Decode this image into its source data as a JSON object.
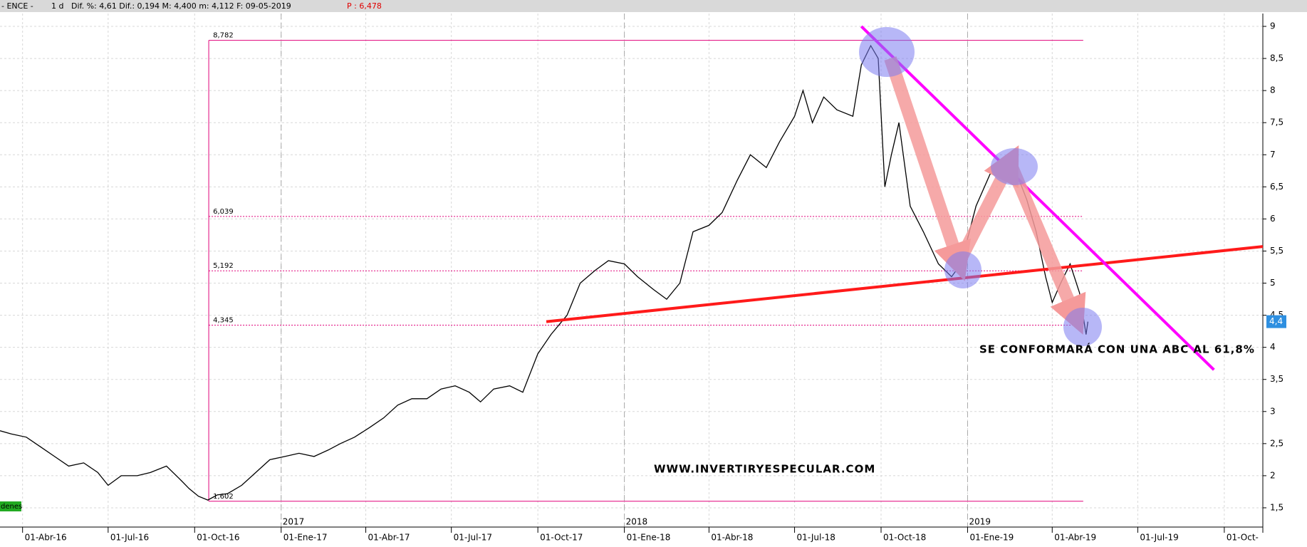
{
  "header": {
    "ticker": "- ENCE -",
    "period": "1 d",
    "stats": "Dif. %: 4,61 Dif.: 0,194 M: 4,400 m: 4,112 F: 09-05-2019",
    "price": "P : 6,478"
  },
  "chart_data": {
    "type": "line",
    "xlim": [
      "2016-03-08",
      "2019-11-11"
    ],
    "ylim": [
      1.2,
      9.2
    ],
    "yticks": [
      {
        "value": 1.5,
        "label": "1,5"
      },
      2,
      {
        "value": 2.5,
        "label": "2,5"
      },
      3,
      {
        "value": 3.5,
        "label": "3,5"
      },
      4,
      {
        "value": 4.5,
        "label": "4,5"
      },
      5,
      {
        "value": 5.5,
        "label": "5,5"
      },
      6,
      {
        "value": 6.5,
        "label": "6,5"
      },
      7,
      {
        "value": 7.5,
        "label": "7,5"
      },
      8,
      {
        "value": 8.5,
        "label": "8,5"
      },
      9
    ],
    "xticks": [
      {
        "value": "2016-04-01",
        "label": "01-Abr-16"
      },
      {
        "value": "2016-07-01",
        "label": "01-Jul-16"
      },
      {
        "value": "2016-10-01",
        "label": "01-Oct-16"
      },
      {
        "value": "2017-01-01",
        "label": "01-Ene-17"
      },
      {
        "value": "2017-04-01",
        "label": "01-Abr-17"
      },
      {
        "value": "2017-07-01",
        "label": "01-Jul-17"
      },
      {
        "value": "2017-10-01",
        "label": "01-Oct-17"
      },
      {
        "value": "2018-01-01",
        "label": "01-Ene-18"
      },
      {
        "value": "2018-04-01",
        "label": "01-Abr-18"
      },
      {
        "value": "2018-07-01",
        "label": "01-Jul-18"
      },
      {
        "value": "2018-10-01",
        "label": "01-Oct-18"
      },
      {
        "value": "2019-01-01",
        "label": "01-Ene-19"
      },
      {
        "value": "2019-04-01",
        "label": "01-Abr-19"
      },
      {
        "value": "2019-07-01",
        "label": "01-Jul-19"
      },
      {
        "value": "2019-10-01",
        "label": "01-Oct-"
      }
    ],
    "year_marks": [
      {
        "value": "2017-01-01",
        "label": "2017"
      },
      {
        "value": "2018-01-01",
        "label": "2018"
      },
      {
        "value": "2019-01-01",
        "label": "2019"
      }
    ],
    "grid": true,
    "series": [
      {
        "color": "#000000",
        "x": [
          "2016-03-08",
          "2016-03-20",
          "2016-04-05",
          "2016-04-20",
          "2016-05-05",
          "2016-05-20",
          "2016-06-05",
          "2016-06-20",
          "2016-07-01",
          "2016-07-15",
          "2016-08-01",
          "2016-08-15",
          "2016-09-01",
          "2016-09-15",
          "2016-09-25",
          "2016-10-05",
          "2016-10-15",
          "2016-10-25",
          "2016-11-05",
          "2016-11-20",
          "2016-12-05",
          "2016-12-20",
          "2017-01-05",
          "2017-01-20",
          "2017-02-05",
          "2017-02-20",
          "2017-03-05",
          "2017-03-20",
          "2017-04-05",
          "2017-04-20",
          "2017-05-05",
          "2017-05-20",
          "2017-06-05",
          "2017-06-20",
          "2017-07-05",
          "2017-07-20",
          "2017-08-01",
          "2017-08-15",
          "2017-09-01",
          "2017-09-15",
          "2017-10-01",
          "2017-10-15",
          "2017-11-01",
          "2017-11-15",
          "2017-12-01",
          "2017-12-15",
          "2018-01-01",
          "2018-01-15",
          "2018-02-01",
          "2018-02-15",
          "2018-03-01",
          "2018-03-15",
          "2018-04-01",
          "2018-04-15",
          "2018-05-01",
          "2018-05-15",
          "2018-06-01",
          "2018-06-15",
          "2018-07-01",
          "2018-07-10",
          "2018-07-20",
          "2018-08-01",
          "2018-08-15",
          "2018-09-01",
          "2018-09-10",
          "2018-09-20",
          "2018-09-28",
          "2018-10-05",
          "2018-10-12",
          "2018-10-20",
          "2018-11-01",
          "2018-11-15",
          "2018-12-01",
          "2018-12-15",
          "2018-12-25",
          "2019-01-10",
          "2019-01-25",
          "2019-02-10",
          "2019-02-25",
          "2019-03-05",
          "2019-03-15",
          "2019-03-25",
          "2019-04-01",
          "2019-04-10",
          "2019-04-20",
          "2019-04-30",
          "2019-05-07",
          "2019-05-09"
        ],
        "values": [
          2.7,
          2.65,
          2.6,
          2.45,
          2.3,
          2.15,
          2.2,
          2.05,
          1.85,
          2.0,
          2.0,
          2.05,
          2.15,
          1.95,
          1.8,
          1.68,
          1.62,
          1.7,
          1.72,
          1.85,
          2.05,
          2.25,
          2.3,
          2.35,
          2.3,
          2.4,
          2.5,
          2.6,
          2.75,
          2.9,
          3.1,
          3.2,
          3.2,
          3.35,
          3.4,
          3.3,
          3.15,
          3.35,
          3.4,
          3.3,
          3.9,
          4.2,
          4.5,
          5.0,
          5.2,
          5.35,
          5.3,
          5.1,
          4.9,
          4.75,
          5.0,
          5.8,
          5.9,
          6.1,
          6.6,
          7.0,
          6.8,
          7.2,
          7.6,
          8.0,
          7.5,
          7.9,
          7.7,
          7.6,
          8.4,
          8.7,
          8.5,
          6.5,
          7.0,
          7.5,
          6.2,
          5.8,
          5.3,
          5.1,
          5.3,
          6.2,
          6.7,
          6.8,
          6.6,
          6.3,
          5.8,
          5.1,
          4.7,
          5.0,
          5.3,
          4.85,
          4.2,
          4.4
        ]
      }
    ],
    "fib_range": [
      "2016-10-16",
      "2019-05-04"
    ],
    "fib_levels": [
      {
        "value": 8.782,
        "label": "8,782"
      },
      {
        "value": 6.039,
        "label": "6,039"
      },
      {
        "value": 5.192,
        "label": "5,192"
      },
      {
        "value": 4.345,
        "label": "4,345"
      },
      {
        "value": 1.602,
        "label": "1,602"
      }
    ],
    "trendlines": [
      {
        "color": "#ff1a1a",
        "x": [
          "2017-10-10",
          "2019-11-11"
        ],
        "y": [
          4.4,
          5.57
        ]
      },
      {
        "color": "#ff00ff",
        "x": [
          "2018-09-10",
          "2019-09-20"
        ],
        "y": [
          9.0,
          3.65
        ]
      }
    ],
    "last_price": {
      "value": 4.4,
      "label": "4,4"
    },
    "annotations": [
      "SE CONFORMARÁ CON UNA ABC AL 61,8%",
      "WWW.INVERTIRYESPECULAR.COM"
    ],
    "corner_tag": "denes"
  }
}
